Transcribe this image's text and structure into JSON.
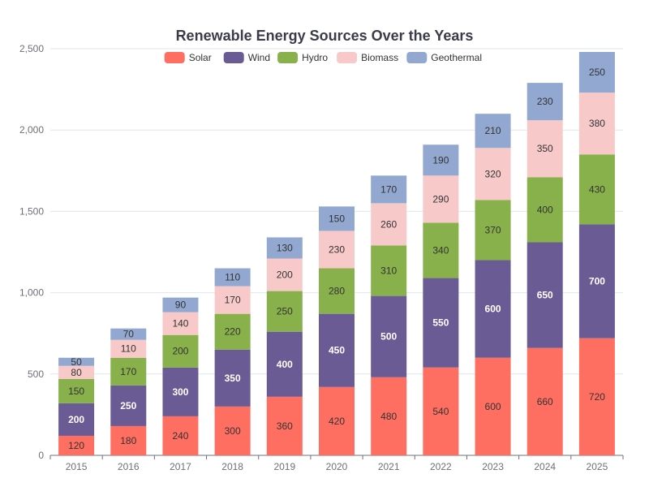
{
  "chart_data": {
    "type": "bar",
    "stacked": true,
    "title": "Renewable Energy Sources Over the Years",
    "categories": [
      "2015",
      "2016",
      "2017",
      "2018",
      "2019",
      "2020",
      "2021",
      "2022",
      "2023",
      "2024",
      "2025"
    ],
    "series": [
      {
        "name": "Solar",
        "color": "#ff6f61",
        "values": [
          120,
          180,
          240,
          300,
          360,
          420,
          480,
          540,
          600,
          660,
          720
        ]
      },
      {
        "name": "Wind",
        "color": "#6b5b95",
        "values": [
          200,
          250,
          300,
          350,
          400,
          450,
          500,
          550,
          600,
          650,
          700
        ]
      },
      {
        "name": "Hydro",
        "color": "#88b04b",
        "values": [
          150,
          170,
          200,
          220,
          250,
          280,
          310,
          340,
          370,
          400,
          430
        ]
      },
      {
        "name": "Biomass",
        "color": "#f7cac9",
        "values": [
          80,
          110,
          140,
          170,
          200,
          230,
          260,
          290,
          320,
          350,
          380
        ]
      },
      {
        "name": "Geothermal",
        "color": "#92a8d1",
        "values": [
          50,
          70,
          90,
          110,
          130,
          150,
          170,
          190,
          210,
          230,
          250
        ]
      }
    ],
    "y_ticks": [
      "0",
      "500",
      "1,000",
      "1,500",
      "2,000",
      "2,500"
    ],
    "ylim": [
      0,
      2500
    ],
    "grid": true,
    "legend_position": "top"
  }
}
